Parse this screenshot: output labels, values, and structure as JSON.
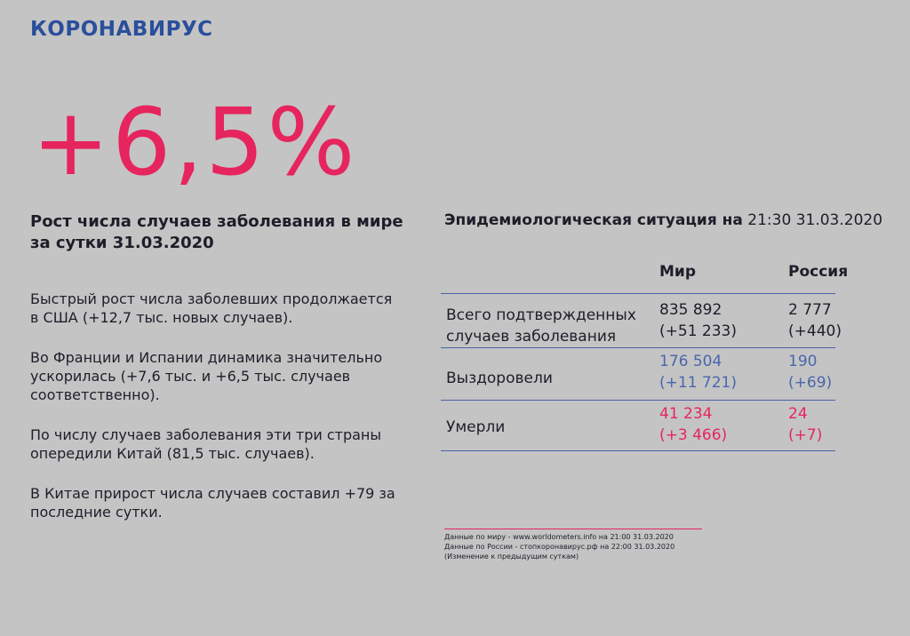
{
  "header": {
    "title": "КОРОНАВИРУС"
  },
  "highlight": {
    "value": "+6,5%",
    "caption_line1": "Рост числа случаев заболевания в мире",
    "caption_line2": "за сутки 31.03.2020"
  },
  "paragraphs": [
    "Быстрый рост числа заболевших продолжается в США (+12,7 тыс. новых случаев).",
    "Во Франции и Испании динамика значительно ускорилась (+7,6 тыс. и +6,5 тыс. случаев соответственно).",
    "По числу случаев заболевания эти три страны опередили Китай (81,5 тыс. случаев).",
    "В Китае прирост числа случаев составил +79 за последние сутки."
  ],
  "situation": {
    "title_bold": "Эпидемиологическая ситуация на",
    "title_time": "21:30 31.03.2020",
    "columns": {
      "world": "Мир",
      "russia": "Россия"
    },
    "rows": {
      "confirmed": {
        "label_line1": "Всего подтвержденных",
        "label_line2": "случаев заболевания",
        "world_value": "835 892",
        "world_delta": "(+51 233)",
        "russia_value": "2 777",
        "russia_delta": "(+440)"
      },
      "recovered": {
        "label": "Выздоровели",
        "world_value": "176 504",
        "world_delta": "(+11 721)",
        "russia_value": "190",
        "russia_delta": "(+69)",
        "color": "#4a66ad"
      },
      "deaths": {
        "label": "Умерли",
        "world_value": "41 234",
        "world_delta": "(+3 466)",
        "russia_value": "24",
        "russia_delta": "(+7)",
        "color": "#e6245e"
      }
    }
  },
  "footnotes": {
    "line1": "Данные по миру - www.worldometers.info на 21:00 31.03.2020",
    "line2": "Данные по России - стопкоронавирус.рф на 22:00 31.03.2020",
    "line3": "(Изменение к предыдущим суткам)"
  },
  "colors": {
    "background": "#c4c4c4",
    "header": "#2a4f9c",
    "accent": "#e6245e",
    "recovered": "#4a66ad",
    "text": "#1e1e2a"
  }
}
